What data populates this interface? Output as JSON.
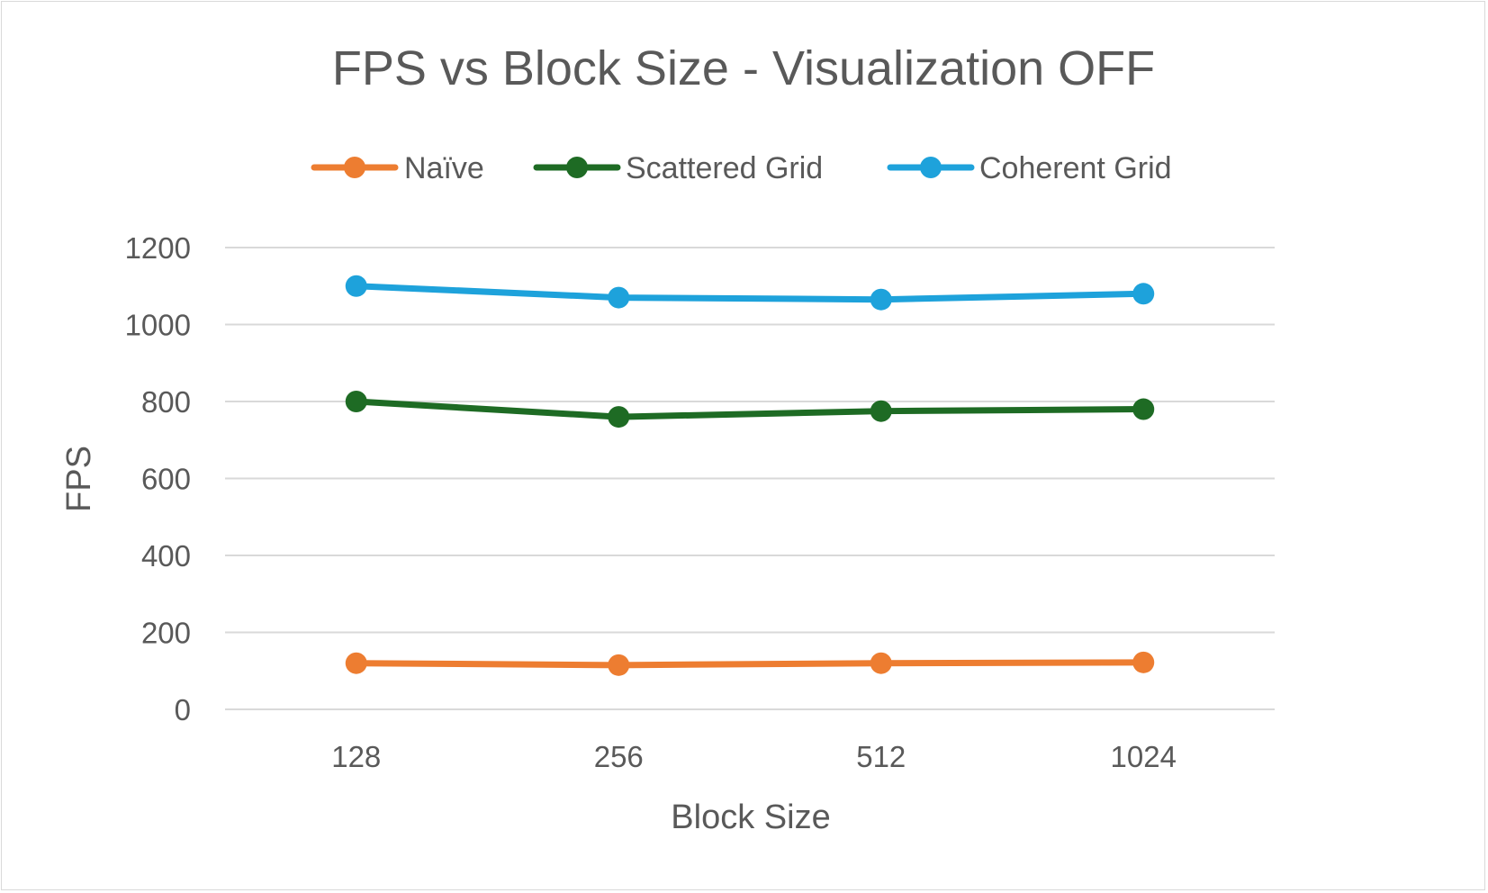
{
  "chart_data": {
    "type": "line",
    "title": "FPS vs Block Size - Visualization OFF",
    "xlabel": "Block Size",
    "ylabel": "FPS",
    "categories": [
      "128",
      "256",
      "512",
      "1024"
    ],
    "ylim": [
      0,
      1200
    ],
    "yticks": [
      0,
      200,
      400,
      600,
      800,
      1000,
      1200
    ],
    "grid": true,
    "legend_position": "top",
    "series": [
      {
        "name": "Naïve",
        "color": "#ED7D31",
        "values": [
          120,
          115,
          120,
          122
        ]
      },
      {
        "name": "Scattered Grid",
        "color": "#1E6B24",
        "values": [
          800,
          760,
          775,
          780
        ]
      },
      {
        "name": "Coherent Grid",
        "color": "#1EA2DB",
        "values": [
          1100,
          1070,
          1065,
          1080
        ]
      }
    ]
  }
}
